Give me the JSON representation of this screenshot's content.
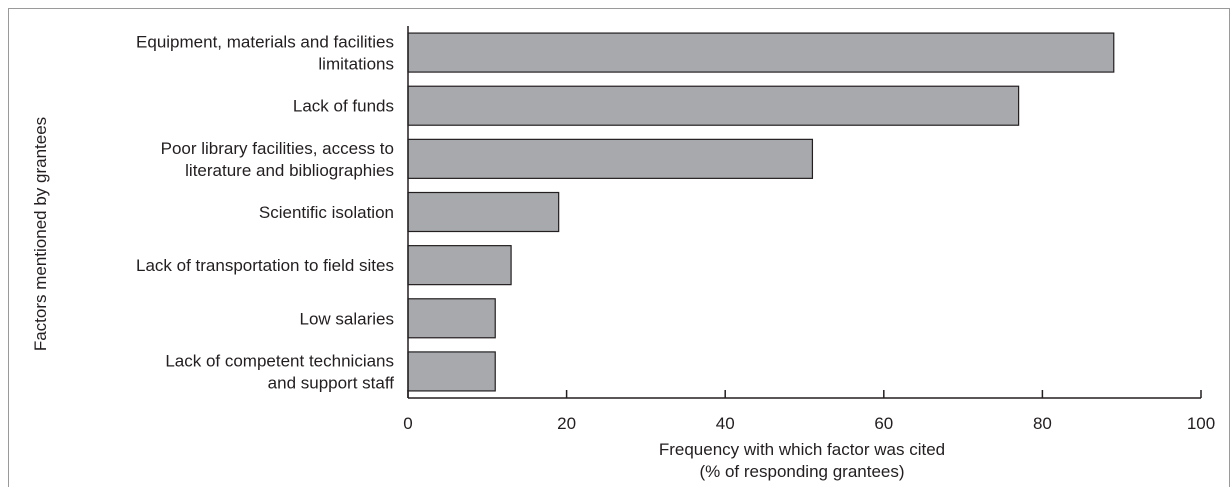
{
  "chart_data": {
    "type": "bar",
    "orientation": "horizontal",
    "categories": [
      [
        "Equipment, materials and facilities",
        "limitations"
      ],
      [
        "Lack of funds"
      ],
      [
        "Poor library facilities, access to",
        "literature and bibliographies"
      ],
      [
        "Scientific isolation"
      ],
      [
        "Lack of transportation to field sites"
      ],
      [
        "Low salaries"
      ],
      [
        "Lack of competent technicians",
        "and support staff"
      ]
    ],
    "values": [
      89,
      77,
      51,
      19,
      13,
      11,
      11
    ],
    "xlabel": [
      "Frequency with which factor was cited",
      "(% of responding grantees)"
    ],
    "ylabel": "Factors mentioned by grantees",
    "xlim": [
      0,
      100
    ],
    "xticks": [
      0,
      20,
      40,
      60,
      80,
      100
    ],
    "grid": false,
    "colors": {
      "bar_fill": "#a7a9ac",
      "bar_stroke": "#231f20",
      "axis": "#231f20",
      "frame": "#9a9a9a"
    }
  }
}
